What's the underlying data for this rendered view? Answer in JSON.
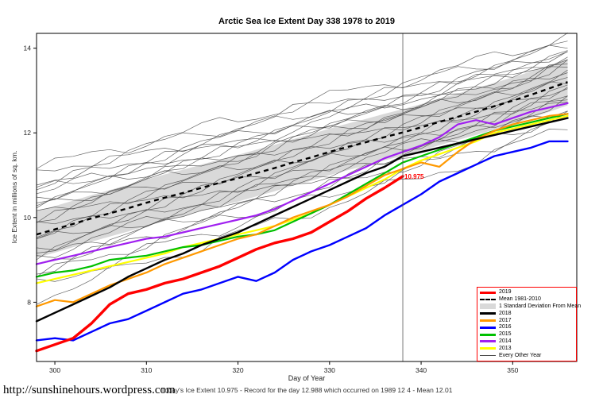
{
  "page": {
    "footer_url": "http://sunshinehours.wordpress.com",
    "bottom_note": "Today's Ice Extent  10.975  - Record for the day  12.988 which occurred on 1989 12 4  - Mean  12.01"
  },
  "chart_data": {
    "type": "line",
    "title": "Arctic Sea Ice Extent Day 338 1978 to 2019",
    "xlabel": "Day of Year",
    "ylabel": "Ice Extent in millions of sq. km.",
    "xlim": [
      298,
      357
    ],
    "ylim": [
      6.6,
      14.35
    ],
    "xticks": [
      300,
      310,
      320,
      330,
      340,
      350
    ],
    "yticks": [
      8,
      10,
      12,
      14
    ],
    "grid": false,
    "x": [
      298,
      300,
      302,
      304,
      306,
      308,
      310,
      312,
      314,
      316,
      318,
      320,
      322,
      324,
      326,
      328,
      330,
      332,
      334,
      336,
      338,
      340,
      342,
      344,
      346,
      348,
      350,
      352,
      354,
      356
    ],
    "mean_series": {
      "name": "Mean 1981-2010",
      "color": "#000000",
      "dash": true,
      "width": 2.4,
      "values": [
        9.6,
        9.72,
        9.85,
        9.98,
        10.1,
        10.22,
        10.35,
        10.47,
        10.58,
        10.7,
        10.82,
        10.93,
        11.05,
        11.17,
        11.3,
        11.42,
        11.55,
        11.67,
        11.78,
        11.9,
        12.01,
        12.13,
        12.26,
        12.38,
        12.5,
        12.63,
        12.76,
        12.9,
        13.05,
        13.2
      ]
    },
    "band": {
      "name": "1 Standard Deviation From Mean",
      "halfwidth": 0.55,
      "color": "#d9d9d9"
    },
    "series": [
      {
        "name": "2013",
        "color": "#ffff00",
        "width": 2.2,
        "values": [
          8.45,
          8.55,
          8.65,
          8.75,
          8.85,
          8.95,
          9.05,
          9.15,
          9.3,
          9.4,
          9.5,
          9.6,
          9.7,
          9.8,
          9.95,
          10.1,
          10.3,
          10.5,
          10.7,
          10.9,
          11.15,
          11.35,
          11.5,
          11.65,
          11.8,
          12.0,
          12.1,
          12.2,
          12.3,
          12.4
        ]
      },
      {
        "name": "2014",
        "color": "#a020f0",
        "width": 2.2,
        "values": [
          8.9,
          9.0,
          9.1,
          9.2,
          9.3,
          9.4,
          9.5,
          9.55,
          9.65,
          9.75,
          9.85,
          9.95,
          10.05,
          10.2,
          10.4,
          10.6,
          10.8,
          11.0,
          11.2,
          11.4,
          11.55,
          11.7,
          11.9,
          12.2,
          12.3,
          12.2,
          12.35,
          12.5,
          12.6,
          12.7
        ]
      },
      {
        "name": "2015",
        "color": "#00c000",
        "width": 2.2,
        "values": [
          8.6,
          8.7,
          8.75,
          8.85,
          9.0,
          9.05,
          9.1,
          9.2,
          9.3,
          9.35,
          9.45,
          9.55,
          9.6,
          9.7,
          9.9,
          10.1,
          10.3,
          10.55,
          10.8,
          11.05,
          11.3,
          11.45,
          11.6,
          11.75,
          11.9,
          12.05,
          12.15,
          12.25,
          12.35,
          12.45
        ]
      },
      {
        "name": "2016",
        "color": "#0000ff",
        "width": 2.4,
        "values": [
          7.1,
          7.15,
          7.1,
          7.3,
          7.5,
          7.6,
          7.8,
          8.0,
          8.2,
          8.3,
          8.45,
          8.6,
          8.5,
          8.7,
          9.0,
          9.2,
          9.35,
          9.55,
          9.75,
          10.05,
          10.3,
          10.55,
          10.85,
          11.05,
          11.25,
          11.45,
          11.55,
          11.65,
          11.8,
          11.8
        ]
      },
      {
        "name": "2017",
        "color": "#ff9900",
        "width": 2.2,
        "values": [
          7.9,
          8.05,
          8.0,
          8.2,
          8.4,
          8.55,
          8.7,
          8.9,
          9.05,
          9.2,
          9.35,
          9.5,
          9.6,
          9.8,
          10.0,
          10.15,
          10.3,
          10.5,
          10.75,
          11.0,
          11.15,
          11.3,
          11.2,
          11.55,
          11.85,
          12.05,
          12.2,
          12.3,
          12.4,
          12.45
        ]
      },
      {
        "name": "2018",
        "color": "#000000",
        "width": 2.4,
        "values": [
          7.55,
          7.75,
          7.95,
          8.15,
          8.35,
          8.6,
          8.8,
          9.0,
          9.15,
          9.35,
          9.5,
          9.65,
          9.85,
          10.05,
          10.25,
          10.45,
          10.65,
          10.85,
          11.05,
          11.2,
          11.45,
          11.55,
          11.65,
          11.75,
          11.85,
          11.95,
          12.05,
          12.15,
          12.25,
          12.35
        ]
      },
      {
        "name": "2019",
        "color": "#ff0000",
        "width": 3.4,
        "values": [
          6.85,
          7.0,
          7.15,
          7.5,
          7.95,
          8.2,
          8.3,
          8.45,
          8.55,
          8.7,
          8.85,
          9.05,
          9.25,
          9.4,
          9.5,
          9.65,
          9.9,
          10.15,
          10.45,
          10.7,
          10.975,
          null,
          null,
          null,
          null,
          null,
          null,
          null,
          null,
          null
        ]
      }
    ],
    "background_years": {
      "name": "Every Other Year",
      "color": "#4a4a4a",
      "width": 0.7,
      "offsets": [
        1.55,
        1.4,
        1.25,
        1.12,
        1.0,
        0.88,
        0.76,
        0.64,
        0.52,
        0.4,
        0.28,
        0.16,
        0.05,
        -0.08,
        -0.2,
        -0.32,
        -0.45,
        -0.58,
        -0.7,
        -0.85,
        -1.0,
        -1.2,
        -1.5,
        0.95,
        0.6,
        -0.5
      ],
      "taper": 0.3,
      "jitter_amp": 0.13
    },
    "marker": {
      "day": 338,
      "value": 10.975,
      "label": "10.975",
      "line_color": "#555555",
      "label_color": "#ff0000"
    },
    "legend": {
      "position": "bottom-right",
      "border_color": "#ff0000",
      "entries": [
        {
          "label": "2019",
          "style": "thick",
          "color": "#ff0000"
        },
        {
          "label": "Mean 1981-2010",
          "style": "dash",
          "color": "#000000"
        },
        {
          "label": "1 Standard Deviation From Mean",
          "style": "band",
          "color": "#d9d9d9"
        },
        {
          "label": "2018",
          "style": "thick",
          "color": "#000000"
        },
        {
          "label": "2017",
          "style": "thick",
          "color": "#ff9900"
        },
        {
          "label": "2016",
          "style": "thick",
          "color": "#0000ff"
        },
        {
          "label": "2015",
          "style": "thick",
          "color": "#00c000"
        },
        {
          "label": "2014",
          "style": "thick",
          "color": "#a020f0"
        },
        {
          "label": "2013",
          "style": "thick",
          "color": "#ffff00"
        },
        {
          "label": "Every Other Year",
          "style": "thin",
          "color": "#4a4a4a"
        }
      ]
    }
  }
}
